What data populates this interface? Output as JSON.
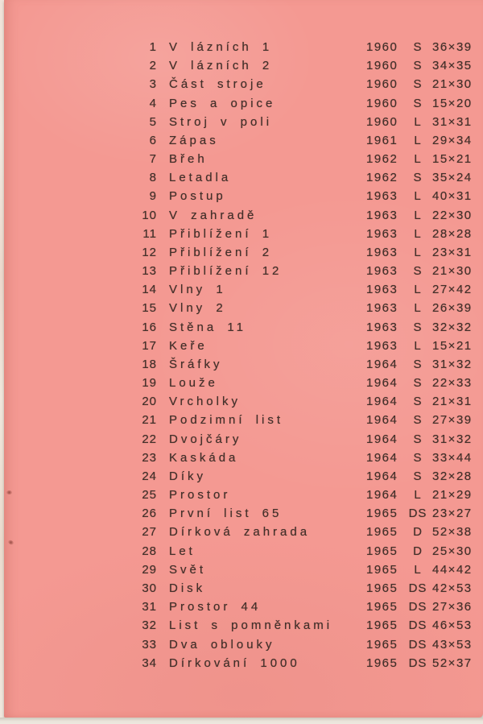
{
  "catalog": {
    "entries": [
      {
        "no": "1",
        "title": "V lázních 1",
        "year": "1960",
        "code": "S",
        "size": "36×39"
      },
      {
        "no": "2",
        "title": "V lázních 2",
        "year": "1960",
        "code": "S",
        "size": "34×35"
      },
      {
        "no": "3",
        "title": "Část stroje",
        "year": "1960",
        "code": "S",
        "size": "21×30"
      },
      {
        "no": "4",
        "title": "Pes a opice",
        "year": "1960",
        "code": "S",
        "size": "15×20"
      },
      {
        "no": "5",
        "title": "Stroj v poli",
        "year": "1960",
        "code": "L",
        "size": "31×31"
      },
      {
        "no": "6",
        "title": "Zápas",
        "year": "1961",
        "code": "L",
        "size": "29×34"
      },
      {
        "no": "7",
        "title": "Břeh",
        "year": "1962",
        "code": "L",
        "size": "15×21"
      },
      {
        "no": "8",
        "title": "Letadla",
        "year": "1962",
        "code": "S",
        "size": "35×24"
      },
      {
        "no": "9",
        "title": "Postup",
        "year": "1963",
        "code": "L",
        "size": "40×31"
      },
      {
        "no": "10",
        "title": "V zahradě",
        "year": "1963",
        "code": "L",
        "size": "22×30"
      },
      {
        "no": "11",
        "title": "Přiblížení 1",
        "year": "1963",
        "code": "L",
        "size": "28×28"
      },
      {
        "no": "12",
        "title": "Přiblížení 2",
        "year": "1963",
        "code": "L",
        "size": "23×31"
      },
      {
        "no": "13",
        "title": "Přiblížení 12",
        "year": "1963",
        "code": "S",
        "size": "21×30"
      },
      {
        "no": "14",
        "title": "Vlny 1",
        "year": "1963",
        "code": "L",
        "size": "27×42"
      },
      {
        "no": "15",
        "title": "Vlny 2",
        "year": "1963",
        "code": "L",
        "size": "26×39"
      },
      {
        "no": "16",
        "title": "Stěna 11",
        "year": "1963",
        "code": "S",
        "size": "32×32"
      },
      {
        "no": "17",
        "title": "Keře",
        "year": "1963",
        "code": "L",
        "size": "15×21"
      },
      {
        "no": "18",
        "title": "Šráfky",
        "year": "1964",
        "code": "S",
        "size": "31×32"
      },
      {
        "no": "19",
        "title": "Louže",
        "year": "1964",
        "code": "S",
        "size": "22×33"
      },
      {
        "no": "20",
        "title": "Vrcholky",
        "year": "1964",
        "code": "S",
        "size": "21×31"
      },
      {
        "no": "21",
        "title": "Podzimní list",
        "year": "1964",
        "code": "S",
        "size": "27×39"
      },
      {
        "no": "22",
        "title": "Dvojčáry",
        "year": "1964",
        "code": "S",
        "size": "31×32"
      },
      {
        "no": "23",
        "title": "Kaskáda",
        "year": "1964",
        "code": "S",
        "size": "33×44"
      },
      {
        "no": "24",
        "title": "Díky",
        "year": "1964",
        "code": "S",
        "size": "32×28"
      },
      {
        "no": "25",
        "title": "Prostor",
        "year": "1964",
        "code": "L",
        "size": "21×29"
      },
      {
        "no": "26",
        "title": "První list 65",
        "year": "1965",
        "code": "DS",
        "size": "23×27"
      },
      {
        "no": "27",
        "title": "Dírková zahrada",
        "year": "1965",
        "code": "D",
        "size": "52×38"
      },
      {
        "no": "28",
        "title": "Let",
        "year": "1965",
        "code": "D",
        "size": "25×30"
      },
      {
        "no": "29",
        "title": "Svět",
        "year": "1965",
        "code": "L",
        "size": "44×42"
      },
      {
        "no": "30",
        "title": "Disk",
        "year": "1965",
        "code": "DS",
        "size": "42×53"
      },
      {
        "no": "31",
        "title": "Prostor 44",
        "year": "1965",
        "code": "DS",
        "size": "27×36"
      },
      {
        "no": "32",
        "title": "List s pomněnkami",
        "year": "1965",
        "code": "DS",
        "size": "46×53"
      },
      {
        "no": "33",
        "title": "Dva oblouky",
        "year": "1965",
        "code": "DS",
        "size": "43×53"
      },
      {
        "no": "34",
        "title": "Dírkování 1000",
        "year": "1965",
        "code": "DS",
        "size": "52×37"
      }
    ]
  },
  "colors": {
    "page_pink": "#f49992",
    "ink": "#44302a",
    "scan_backing": "#ebe6dc"
  }
}
